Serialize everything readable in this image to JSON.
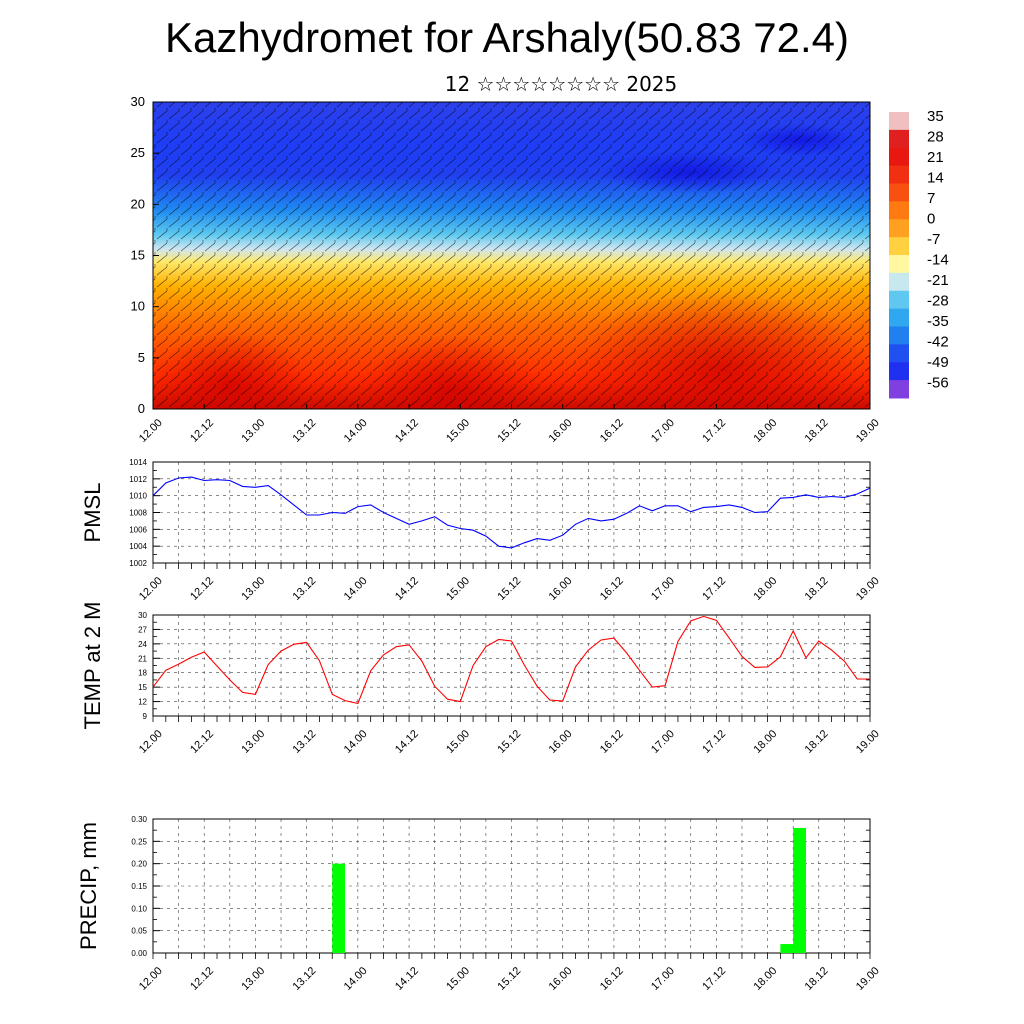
{
  "header": {
    "title": "Kazhydromet for Arshaly(50.83 72.4)",
    "subtitle": "12 ☆☆☆☆☆☆☆☆ 2025"
  },
  "x_tick_labels": [
    "12.00",
    "12.12",
    "13.00",
    "13.12",
    "14.00",
    "14.12",
    "15.00",
    "15.12",
    "16.00",
    "16.12",
    "17.00",
    "17.12",
    "18.00",
    "18.12",
    "19.00"
  ],
  "colors": {
    "pmsl_line": "#0000ff",
    "temp_line": "#ff0000",
    "precip_bar": "#00ff00"
  },
  "chart_data": [
    {
      "type": "heatmap",
      "name": "cross-section",
      "ylim": [
        0,
        30
      ],
      "y_ticks": [
        0,
        5,
        10,
        15,
        20,
        25,
        30
      ],
      "colorbar_labels": [
        "35",
        "28",
        "21",
        "14",
        "7",
        "0",
        "-7",
        "-14",
        "-21",
        "-28",
        "-35",
        "-42",
        "-49",
        "-56"
      ],
      "description_levels": "temperature field with wind barbs"
    },
    {
      "type": "line",
      "ylabel": "PMSL",
      "ylim": [
        1002,
        1014
      ],
      "y_ticks": [
        1002,
        1004,
        1006,
        1008,
        1010,
        1012,
        1014
      ],
      "x": [
        0,
        3,
        6,
        9,
        12,
        15,
        18,
        21,
        24,
        27,
        30,
        33,
        36,
        39,
        42,
        45,
        48,
        51,
        54,
        57,
        60,
        63,
        66,
        69,
        72,
        75,
        78,
        81,
        84,
        87,
        90,
        93,
        96,
        99,
        102,
        105,
        108,
        111,
        114,
        117,
        120,
        123,
        126,
        129,
        132,
        135,
        138,
        141,
        144,
        147,
        150,
        153,
        156,
        159,
        162,
        165,
        168
      ],
      "values": [
        1010.0,
        1011.5,
        1012.1,
        1012.2,
        1011.8,
        1011.9,
        1011.8,
        1011.1,
        1011.0,
        1011.2,
        1010.1,
        1008.9,
        1007.7,
        1007.7,
        1008.0,
        1007.9,
        1008.7,
        1008.9,
        1008.0,
        1007.3,
        1006.6,
        1007.0,
        1007.5,
        1006.5,
        1006.1,
        1005.9,
        1005.2,
        1004.0,
        1003.8,
        1004.4,
        1004.9,
        1004.7,
        1005.3,
        1006.6,
        1007.3,
        1007.0,
        1007.2,
        1007.9,
        1008.8,
        1008.2,
        1008.8,
        1008.8,
        1008.1,
        1008.6,
        1008.7,
        1008.9,
        1008.6,
        1008.0,
        1008.1,
        1009.7,
        1009.8,
        1010.1,
        1009.8,
        1009.9,
        1009.8,
        1010.2,
        1010.9
      ]
    },
    {
      "type": "line",
      "ylabel": "TEMP at 2 M",
      "ylim": [
        9,
        30
      ],
      "y_ticks": [
        9,
        12,
        15,
        18,
        21,
        24,
        27,
        30
      ],
      "x": [
        0,
        3,
        6,
        9,
        12,
        15,
        18,
        21,
        24,
        27,
        30,
        33,
        36,
        39,
        42,
        45,
        48,
        51,
        54,
        57,
        60,
        63,
        66,
        69,
        72,
        75,
        78,
        81,
        84,
        87,
        90,
        93,
        96,
        99,
        102,
        105,
        108,
        111,
        114,
        117,
        120,
        123,
        126,
        129,
        132,
        135,
        138,
        141,
        144,
        147,
        150,
        153,
        156,
        159,
        162,
        165,
        168
      ],
      "values": [
        15.0,
        18.5,
        19.8,
        21.2,
        22.3,
        19.4,
        16.5,
        13.9,
        13.5,
        19.7,
        22.5,
        23.9,
        24.3,
        20.5,
        13.5,
        12.2,
        11.6,
        18.4,
        21.7,
        23.4,
        23.8,
        20.4,
        15.2,
        12.5,
        12.0,
        19.5,
        23.4,
        24.9,
        24.6,
        19.6,
        15.2,
        12.3,
        12.1,
        19.2,
        22.7,
        24.8,
        25.2,
        22.1,
        18.5,
        15.0,
        15.3,
        24.5,
        28.8,
        29.7,
        28.9,
        25.2,
        21.4,
        19.1,
        19.2,
        21.3,
        26.7,
        21.1,
        24.6,
        22.7,
        20.4,
        16.7,
        16.7
      ]
    },
    {
      "type": "bar",
      "ylabel": "PRECIP, mm",
      "ylim": [
        0,
        0.3
      ],
      "y_ticks": [
        "0.00",
        "0.05",
        "0.10",
        "0.15",
        "0.20",
        "0.25",
        "0.30"
      ],
      "bins": [
        [
          42,
          45,
          0.2
        ],
        [
          147,
          150,
          0.02
        ],
        [
          150,
          153,
          0.28
        ]
      ]
    }
  ],
  "axis_labels": {
    "pmsl": "PMSL",
    "temp": "TEMP at 2 M",
    "precip": "PRECIP, mm"
  }
}
